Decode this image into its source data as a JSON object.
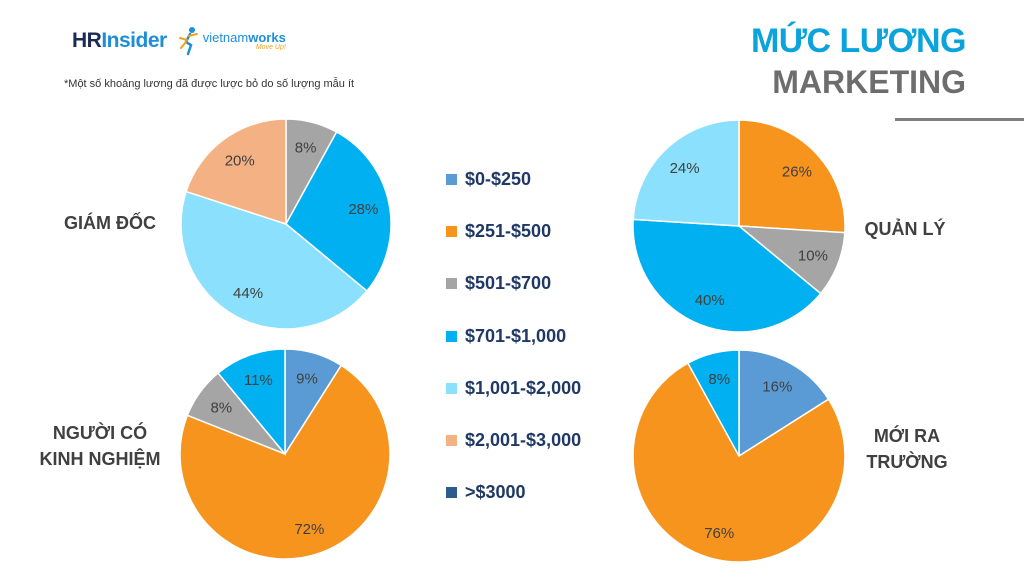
{
  "logo": {
    "hr_prefix": "HR",
    "hr_suffix": "Insider",
    "vnw_a": "vietnam",
    "vnw_b": "works",
    "vnw_tagline": "Move Up!"
  },
  "note": "*Một số khoảng lương đã được lược bỏ do số lượng mẫu ít",
  "title": {
    "line1": "MỨC LƯƠNG",
    "line2": "MARKETING"
  },
  "colors": {
    "0-250": "#5b9bd5",
    "251-500": "#f7941d",
    "501-700": "#a5a5a5",
    "701-1000": "#00b0f0",
    "1001-2000": "#8be0fd",
    "2001-3000": "#f4b183",
    "3000+": "#2e5b8e"
  },
  "chart_data": {
    "type": "pie",
    "legend_position": "center",
    "legend": [
      {
        "key": "0-250",
        "label": "$0-$250"
      },
      {
        "key": "251-500",
        "label": "$251-$500"
      },
      {
        "key": "501-700",
        "label": "$501-$700"
      },
      {
        "key": "701-1000",
        "label": "$701-$1,000"
      },
      {
        "key": "1001-2000",
        "label": "$1,001-$2,000"
      },
      {
        "key": "2001-3000",
        "label": "$2,001-$3,000"
      },
      {
        "key": "3000+",
        "label": ">$3000"
      }
    ],
    "charts": [
      {
        "name": "GIÁM ĐỐC",
        "slices": [
          {
            "key": "501-700",
            "value": 8,
            "label": "8%"
          },
          {
            "key": "701-1000",
            "value": 28,
            "label": "28%"
          },
          {
            "key": "1001-2000",
            "value": 44,
            "label": "44%"
          },
          {
            "key": "2001-3000",
            "value": 20,
            "label": "20%"
          }
        ]
      },
      {
        "name": "QUẢN LÝ",
        "slices": [
          {
            "key": "251-500",
            "value": 26,
            "label": "26%"
          },
          {
            "key": "501-700",
            "value": 10,
            "label": "10%"
          },
          {
            "key": "701-1000",
            "value": 40,
            "label": "40%"
          },
          {
            "key": "1001-2000",
            "value": 24,
            "label": "24%"
          }
        ]
      },
      {
        "name": "NGƯỜI CÓ KINH NGHIỆM",
        "name_lines": [
          "NGƯỜI CÓ",
          "KINH NGHIỆM"
        ],
        "slices": [
          {
            "key": "0-250",
            "value": 9,
            "label": "9%"
          },
          {
            "key": "251-500",
            "value": 72,
            "label": "72%"
          },
          {
            "key": "501-700",
            "value": 8,
            "label": "8%"
          },
          {
            "key": "701-1000",
            "value": 11,
            "label": "11%"
          }
        ]
      },
      {
        "name": "MỚI RA TRƯỜNG",
        "name_lines": [
          "MỚI RA",
          "TRƯỜNG"
        ],
        "slices": [
          {
            "key": "0-250",
            "value": 16,
            "label": "16%"
          },
          {
            "key": "251-500",
            "value": 76,
            "label": "76%"
          },
          {
            "key": "701-1000",
            "value": 8,
            "label": "8%"
          }
        ]
      }
    ]
  }
}
